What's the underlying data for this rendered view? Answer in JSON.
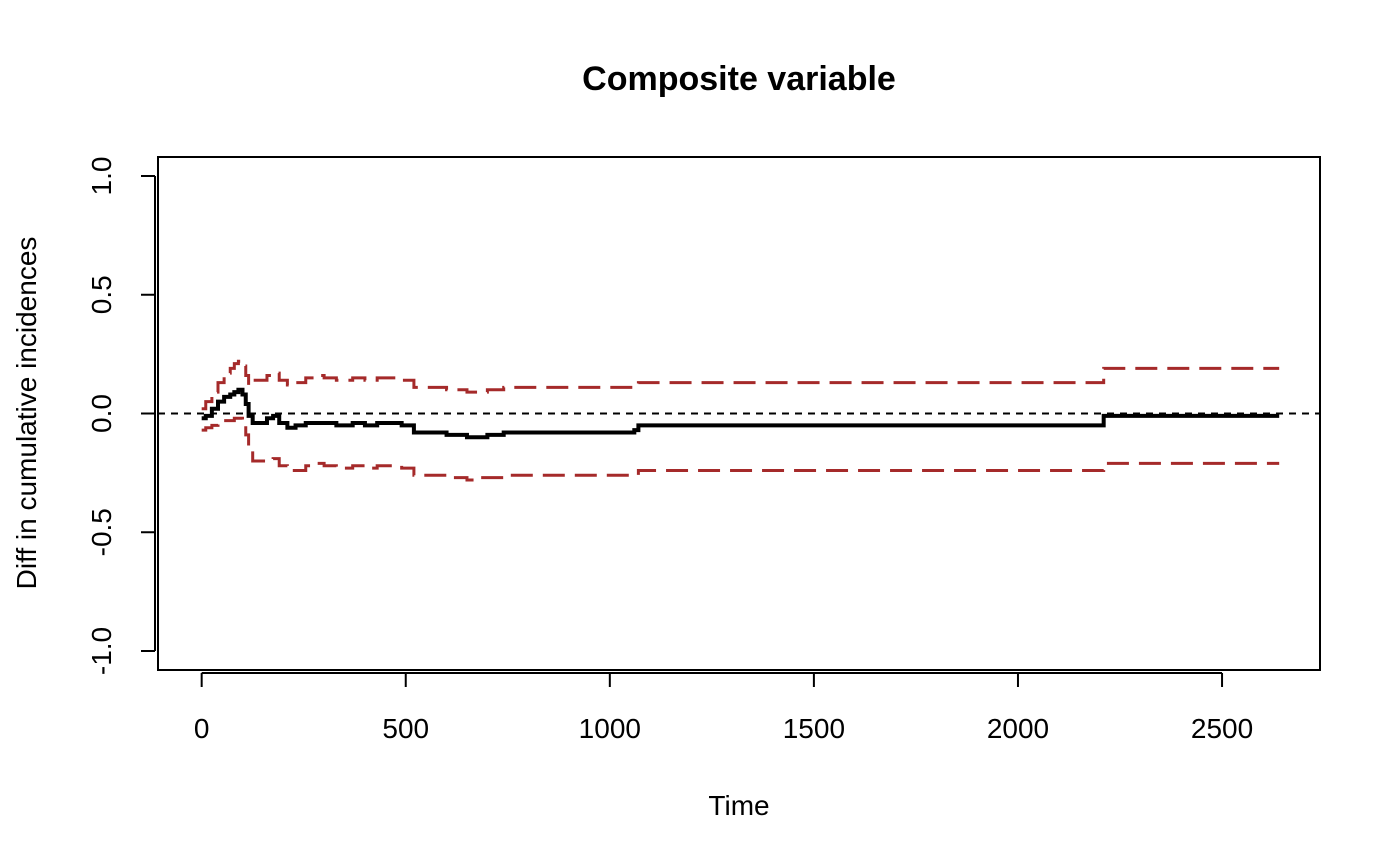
{
  "chart_data": {
    "type": "line",
    "title": "Composite variable",
    "xlabel": "Time",
    "ylabel": "Diff in cumulative incidences",
    "xlim": [
      -107,
      2740
    ],
    "ylim": [
      -1.08,
      1.08
    ],
    "x_ticks": [
      0,
      500,
      1000,
      1500,
      2000,
      2500
    ],
    "x_tick_labels": [
      "0",
      "500",
      "1000",
      "1500",
      "2000",
      "2500"
    ],
    "y_ticks": [
      -1.0,
      -0.5,
      0.0,
      0.5,
      1.0
    ],
    "y_tick_labels": [
      "-1.0",
      "-0.5",
      "0.0",
      "0.5",
      "1.0"
    ],
    "grid": false,
    "legend": "none",
    "reference_line": {
      "y": 0,
      "style": "dashed",
      "color": "#000000"
    },
    "series": [
      {
        "role": "estimate",
        "style": "solid-step",
        "color": "#000000",
        "x": [
          0,
          10,
          25,
          40,
          55,
          70,
          80,
          90,
          100,
          108,
          115,
          125,
          160,
          175,
          190,
          210,
          230,
          255,
          280,
          300,
          330,
          370,
          400,
          430,
          460,
          490,
          520,
          600,
          620,
          650,
          680,
          700,
          740,
          1060,
          1070,
          2200,
          2210,
          2640
        ],
        "y": [
          -0.02,
          -0.01,
          0.02,
          0.05,
          0.07,
          0.08,
          0.09,
          0.1,
          0.08,
          0.04,
          -0.01,
          -0.04,
          -0.02,
          -0.01,
          -0.04,
          -0.06,
          -0.05,
          -0.04,
          -0.04,
          -0.04,
          -0.05,
          -0.04,
          -0.05,
          -0.04,
          -0.04,
          -0.05,
          -0.08,
          -0.09,
          -0.09,
          -0.1,
          -0.1,
          -0.09,
          -0.08,
          -0.07,
          -0.05,
          -0.05,
          -0.01,
          -0.01
        ]
      },
      {
        "role": "upper",
        "style": "dashed-step",
        "color": "#a52a2a",
        "x": [
          0,
          10,
          25,
          40,
          55,
          70,
          80,
          90,
          100,
          108,
          115,
          125,
          160,
          175,
          190,
          210,
          230,
          255,
          280,
          300,
          330,
          370,
          400,
          430,
          460,
          490,
          520,
          600,
          620,
          650,
          680,
          700,
          740,
          1060,
          1070,
          2200,
          2210,
          2640
        ],
        "y": [
          0.02,
          0.05,
          0.09,
          0.13,
          0.17,
          0.19,
          0.21,
          0.22,
          0.2,
          0.16,
          0.12,
          0.14,
          0.16,
          0.17,
          0.14,
          0.12,
          0.13,
          0.15,
          0.16,
          0.15,
          0.14,
          0.15,
          0.14,
          0.15,
          0.15,
          0.14,
          0.11,
          0.1,
          0.1,
          0.09,
          0.09,
          0.1,
          0.11,
          0.12,
          0.13,
          0.13,
          0.19,
          0.19
        ]
      },
      {
        "role": "lower",
        "style": "dashed-step",
        "color": "#a52a2a",
        "x": [
          0,
          10,
          25,
          40,
          55,
          70,
          80,
          90,
          100,
          108,
          115,
          125,
          160,
          175,
          190,
          210,
          230,
          255,
          280,
          300,
          330,
          370,
          400,
          430,
          460,
          490,
          520,
          600,
          620,
          650,
          680,
          700,
          740,
          1060,
          1070,
          2200,
          2210,
          2640
        ],
        "y": [
          -0.07,
          -0.06,
          -0.05,
          -0.04,
          -0.03,
          -0.03,
          -0.02,
          -0.02,
          -0.05,
          -0.09,
          -0.15,
          -0.2,
          -0.2,
          -0.19,
          -0.22,
          -0.24,
          -0.24,
          -0.22,
          -0.21,
          -0.22,
          -0.23,
          -0.22,
          -0.23,
          -0.22,
          -0.22,
          -0.23,
          -0.26,
          -0.27,
          -0.27,
          -0.28,
          -0.27,
          -0.27,
          -0.26,
          -0.26,
          -0.24,
          -0.24,
          -0.21,
          -0.21
        ]
      }
    ]
  }
}
